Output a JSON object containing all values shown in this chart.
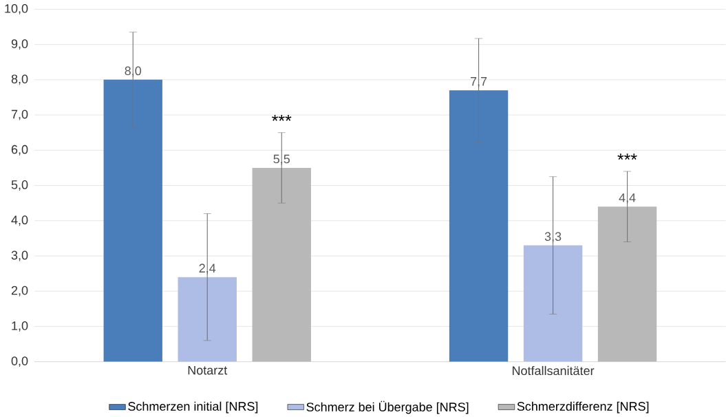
{
  "chart_data": {
    "type": "bar",
    "categories": [
      "Notarzt",
      "Notfallsanitäter"
    ],
    "series": [
      {
        "name": "Schmerzen initial [NRS]",
        "color": "#4a7ebb",
        "values": [
          8.0,
          7.7
        ],
        "errors": [
          1.35,
          1.47
        ],
        "value_labels": [
          "8,0",
          "7,7"
        ]
      },
      {
        "name": "Schmerz bei Übergabe [NRS]",
        "color": "#adbde6",
        "values": [
          2.4,
          3.3
        ],
        "errors": [
          1.8,
          1.95
        ],
        "value_labels": [
          "2,4",
          "3,3"
        ]
      },
      {
        "name": "Schmerzdifferenz [NRS]",
        "color": "#b8b8b8",
        "values": [
          5.5,
          4.4
        ],
        "errors": [
          1.0,
          1.0
        ],
        "value_labels": [
          "5,5",
          "4,4"
        ]
      }
    ],
    "ylim": [
      0,
      10
    ],
    "yticks": [
      {
        "value": 0,
        "label": "0,0"
      },
      {
        "value": 1,
        "label": "1,0"
      },
      {
        "value": 2,
        "label": "2,0"
      },
      {
        "value": 3,
        "label": "3,0"
      },
      {
        "value": 4,
        "label": "4,0"
      },
      {
        "value": 5,
        "label": "5,0"
      },
      {
        "value": 6,
        "label": "6,0"
      },
      {
        "value": 7,
        "label": "7,0"
      },
      {
        "value": 8,
        "label": "8,0"
      },
      {
        "value": 9,
        "label": "9,0"
      },
      {
        "value": 10,
        "label": "10,0"
      }
    ],
    "annotations": [
      "***",
      "***"
    ],
    "grid": "y",
    "legend": "bottom"
  }
}
